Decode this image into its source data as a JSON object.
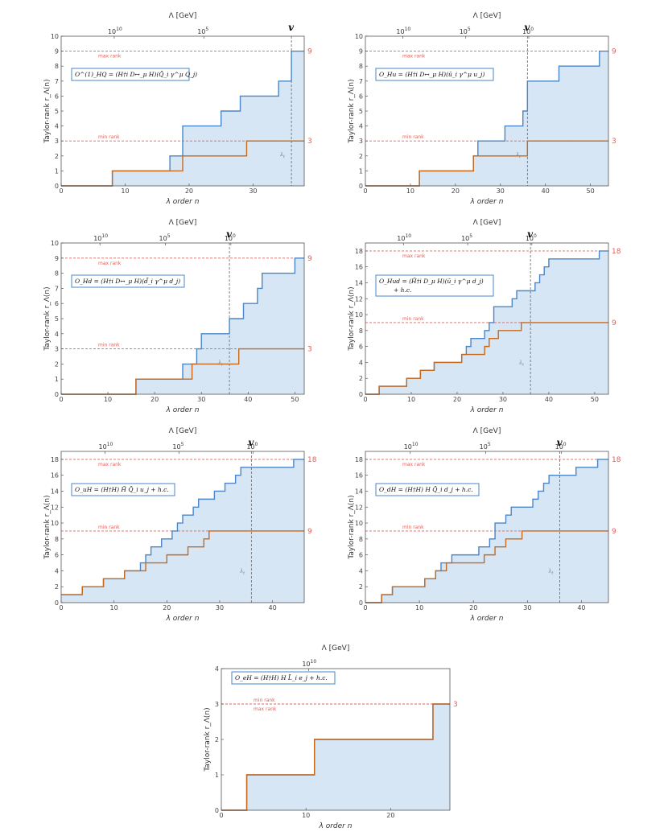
{
  "figure": {
    "common": {
      "xlabel": "λ order n",
      "ylabel": "Taylor-rank  r_Λ(n)",
      "top_axis_label": "Λ [GeV]",
      "vev_label": "v",
      "threshold_label": "λ_t",
      "max_rank_label": "max rank",
      "min_rank_label": "min rank",
      "lambda_ticks": [
        "10^10",
        "10^5",
        "10^0"
      ]
    }
  },
  "chart_data": [
    {
      "type": "line",
      "id": "HQ1",
      "operator_label": "O^(1)_HQ = (H†i D↔_μ H)(Q̄_i γ^μ Q_j)",
      "xlim": [
        0,
        38
      ],
      "ylim": [
        0,
        10
      ],
      "x_ticks": [
        0,
        10,
        20,
        30
      ],
      "y_ticks": [
        0,
        1,
        2,
        3,
        4,
        5,
        6,
        7,
        8,
        9,
        10
      ],
      "lambda_ticks_n": [
        8.3,
        22.3
      ],
      "vev_n": 36,
      "threshold_n": 36,
      "max_rank": 9,
      "min_rank": 3,
      "max_rank_text": "9",
      "min_rank_text": "3",
      "series": [
        {
          "name": "Taylor-rank",
          "color": "#4a86c8",
          "steps": [
            [
              0,
              0
            ],
            [
              8,
              1
            ],
            [
              17,
              2
            ],
            [
              19,
              4
            ],
            [
              25,
              5
            ],
            [
              28,
              6
            ],
            [
              34,
              7
            ],
            [
              36,
              9
            ]
          ]
        },
        {
          "name": "min-rank path",
          "color": "#c8691c",
          "steps": [
            [
              0,
              0
            ],
            [
              8,
              1
            ],
            [
              19,
              2
            ],
            [
              29,
              3
            ]
          ]
        }
      ]
    },
    {
      "type": "line",
      "id": "Hu",
      "operator_label": "O_Hu = (H†i D↔_μ H)(ū_i γ^μ u_j)",
      "xlim": [
        0,
        54
      ],
      "ylim": [
        0,
        10
      ],
      "x_ticks": [
        0,
        10,
        20,
        30,
        40,
        50
      ],
      "y_ticks": [
        0,
        1,
        2,
        3,
        4,
        5,
        6,
        7,
        8,
        9,
        10
      ],
      "lambda_ticks_n": [
        8.3,
        22.3,
        36.3
      ],
      "vev_n": 36,
      "threshold_n": 36,
      "max_rank": 9,
      "min_rank": 3,
      "max_rank_text": "9",
      "min_rank_text": "3",
      "series": [
        {
          "name": "Taylor-rank",
          "color": "#4a86c8",
          "steps": [
            [
              0,
              0
            ],
            [
              12,
              1
            ],
            [
              24,
              2
            ],
            [
              25,
              3
            ],
            [
              31,
              4
            ],
            [
              35,
              5
            ],
            [
              36,
              7
            ],
            [
              43,
              8
            ],
            [
              52,
              9
            ]
          ]
        },
        {
          "name": "min-rank path",
          "color": "#c8691c",
          "steps": [
            [
              0,
              0
            ],
            [
              12,
              1
            ],
            [
              24,
              2
            ],
            [
              36,
              3
            ]
          ]
        }
      ]
    },
    {
      "type": "line",
      "id": "Hd",
      "operator_label": "O_Hd = (H†i D↔_μ H)(d̄_i γ^μ d_j)",
      "xlim": [
        0,
        52
      ],
      "ylim": [
        0,
        10
      ],
      "x_ticks": [
        0,
        10,
        20,
        30,
        40,
        50
      ],
      "y_ticks": [
        0,
        1,
        2,
        3,
        4,
        5,
        6,
        7,
        8,
        9,
        10
      ],
      "lambda_ticks_n": [
        8.3,
        22.3,
        36.3
      ],
      "vev_n": 36,
      "threshold_n": 36,
      "max_rank": 9,
      "min_rank": 3,
      "max_rank_text": "9",
      "min_rank_text": "3",
      "series": [
        {
          "name": "Taylor-rank",
          "color": "#4a86c8",
          "steps": [
            [
              0,
              0
            ],
            [
              16,
              1
            ],
            [
              26,
              2
            ],
            [
              29,
              3
            ],
            [
              30,
              4
            ],
            [
              36,
              5
            ],
            [
              39,
              6
            ],
            [
              42,
              7
            ],
            [
              43,
              8
            ],
            [
              50,
              9
            ]
          ]
        },
        {
          "name": "min-rank path",
          "color": "#c8691c",
          "steps": [
            [
              0,
              0
            ],
            [
              16,
              1
            ],
            [
              28,
              2
            ],
            [
              38,
              3
            ]
          ]
        }
      ]
    },
    {
      "type": "line",
      "id": "Hud",
      "operator_label": "O_Hud = (H̃†i D_μ H)(ū_i γ^μ d_j)",
      "operator_label_2": "+ h.c.",
      "xlim": [
        0,
        53
      ],
      "ylim": [
        0,
        19
      ],
      "x_ticks": [
        0,
        10,
        20,
        30,
        40,
        50
      ],
      "y_ticks": [
        0,
        2,
        4,
        6,
        8,
        10,
        12,
        14,
        16,
        18
      ],
      "lambda_ticks_n": [
        8.3,
        22.3,
        36.3
      ],
      "vev_n": 36,
      "threshold_n": 36,
      "max_rank": 18,
      "min_rank": 9,
      "max_rank_text": "18",
      "min_rank_text": "9",
      "series": [
        {
          "name": "Taylor-rank",
          "color": "#4a86c8",
          "steps": [
            [
              0,
              0
            ],
            [
              3,
              1
            ],
            [
              9,
              2
            ],
            [
              12,
              3
            ],
            [
              15,
              4
            ],
            [
              21,
              5
            ],
            [
              22,
              6
            ],
            [
              23,
              7
            ],
            [
              26,
              8
            ],
            [
              27,
              9
            ],
            [
              28,
              11
            ],
            [
              32,
              12
            ],
            [
              33,
              13
            ],
            [
              37,
              14
            ],
            [
              38,
              15
            ],
            [
              39,
              16
            ],
            [
              40,
              17
            ],
            [
              51,
              18
            ]
          ]
        },
        {
          "name": "min-rank path",
          "color": "#c8691c",
          "steps": [
            [
              0,
              0
            ],
            [
              3,
              1
            ],
            [
              9,
              2
            ],
            [
              12,
              3
            ],
            [
              15,
              4
            ],
            [
              21,
              5
            ],
            [
              26,
              6
            ],
            [
              27,
              7
            ],
            [
              29,
              8
            ],
            [
              34,
              9
            ]
          ]
        }
      ]
    },
    {
      "type": "line",
      "id": "uH",
      "operator_label": "O_uH = (H†H) H̃ Q̄_i u_j +  h.c.",
      "xlim": [
        0,
        46
      ],
      "ylim": [
        0,
        19
      ],
      "x_ticks": [
        0,
        10,
        20,
        30,
        40
      ],
      "y_ticks": [
        0,
        2,
        4,
        6,
        8,
        10,
        12,
        14,
        16,
        18
      ],
      "lambda_ticks_n": [
        8.3,
        22.3,
        36.3
      ],
      "vev_n": 36,
      "threshold_n": 36,
      "max_rank": 18,
      "min_rank": 9,
      "max_rank_text": "18",
      "min_rank_text": "9",
      "series": [
        {
          "name": "Taylor-rank",
          "color": "#4a86c8",
          "steps": [
            [
              0,
              1
            ],
            [
              4,
              2
            ],
            [
              8,
              3
            ],
            [
              12,
              4
            ],
            [
              15,
              5
            ],
            [
              16,
              6
            ],
            [
              17,
              7
            ],
            [
              19,
              8
            ],
            [
              21,
              9
            ],
            [
              22,
              10
            ],
            [
              23,
              11
            ],
            [
              25,
              12
            ],
            [
              26,
              13
            ],
            [
              29,
              14
            ],
            [
              31,
              15
            ],
            [
              33,
              16
            ],
            [
              34,
              17
            ],
            [
              44,
              18
            ]
          ]
        },
        {
          "name": "min-rank path",
          "color": "#c8691c",
          "steps": [
            [
              0,
              1
            ],
            [
              4,
              2
            ],
            [
              8,
              3
            ],
            [
              12,
              4
            ],
            [
              16,
              5
            ],
            [
              20,
              6
            ],
            [
              24,
              7
            ],
            [
              27,
              8
            ],
            [
              28,
              9
            ]
          ]
        }
      ]
    },
    {
      "type": "line",
      "id": "dH",
      "operator_label": "O_dH = (H†H) H Q̄_i d_j +  h.c.",
      "xlim": [
        0,
        45
      ],
      "ylim": [
        0,
        19
      ],
      "x_ticks": [
        0,
        10,
        20,
        30,
        40
      ],
      "y_ticks": [
        0,
        2,
        4,
        6,
        8,
        10,
        12,
        14,
        16,
        18
      ],
      "lambda_ticks_n": [
        8.3,
        22.3,
        36.3
      ],
      "vev_n": 36,
      "threshold_n": 36,
      "max_rank": 18,
      "min_rank": 9,
      "max_rank_text": "18",
      "min_rank_text": "9",
      "series": [
        {
          "name": "Taylor-rank",
          "color": "#4a86c8",
          "steps": [
            [
              0,
              0
            ],
            [
              3,
              1
            ],
            [
              5,
              2
            ],
            [
              11,
              3
            ],
            [
              13,
              4
            ],
            [
              14,
              5
            ],
            [
              16,
              6
            ],
            [
              21,
              7
            ],
            [
              23,
              8
            ],
            [
              24,
              10
            ],
            [
              26,
              11
            ],
            [
              27,
              12
            ],
            [
              31,
              13
            ],
            [
              32,
              14
            ],
            [
              33,
              15
            ],
            [
              34,
              16
            ],
            [
              39,
              17
            ],
            [
              43,
              18
            ]
          ]
        },
        {
          "name": "min-rank path",
          "color": "#c8691c",
          "steps": [
            [
              0,
              0
            ],
            [
              3,
              1
            ],
            [
              5,
              2
            ],
            [
              11,
              3
            ],
            [
              13,
              4
            ],
            [
              15,
              5
            ],
            [
              22,
              6
            ],
            [
              24,
              7
            ],
            [
              26,
              8
            ],
            [
              29,
              9
            ]
          ]
        }
      ]
    },
    {
      "type": "line",
      "id": "eH",
      "operator_label": "O_eH = (H†H) H L̄_i e_j +  h.c.",
      "xlim": [
        0,
        27
      ],
      "ylim": [
        0,
        4
      ],
      "x_ticks": [
        0,
        10,
        20
      ],
      "y_ticks": [
        0,
        1,
        2,
        3,
        4
      ],
      "lambda_ticks_n": [
        10.3
      ],
      "vev_n": null,
      "threshold_n": null,
      "max_rank": 3,
      "min_rank": 3,
      "max_rank_text": "3",
      "min_rank_text": "",
      "series": [
        {
          "name": "Taylor-rank",
          "color": "#4a86c8",
          "steps": [
            [
              0,
              0
            ],
            [
              3,
              1
            ],
            [
              11,
              2
            ],
            [
              25,
              3
            ]
          ]
        },
        {
          "name": "min-rank path",
          "color": "#c8691c",
          "steps": [
            [
              0,
              0
            ],
            [
              3,
              1
            ],
            [
              11,
              2
            ],
            [
              25,
              3
            ]
          ]
        }
      ]
    }
  ]
}
